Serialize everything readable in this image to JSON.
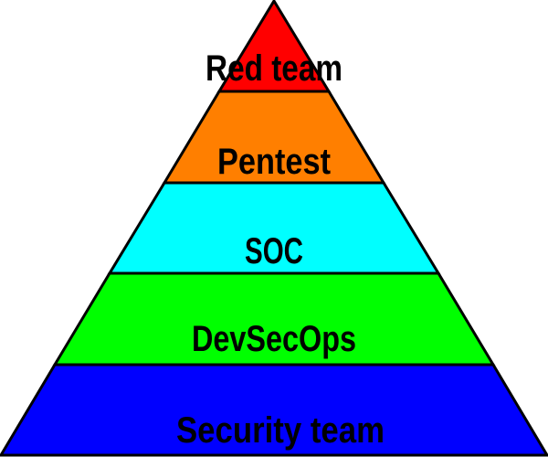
{
  "pyramid": {
    "tiers": [
      {
        "label": "Red team",
        "color": "#ff0000"
      },
      {
        "label": "Pentest",
        "color": "#ff7f00"
      },
      {
        "label": "SOC",
        "color": "#00ffff"
      },
      {
        "label": "DevSecOps",
        "color": "#00ff00"
      },
      {
        "label": "Security team",
        "color": "#0000ff"
      }
    ]
  }
}
